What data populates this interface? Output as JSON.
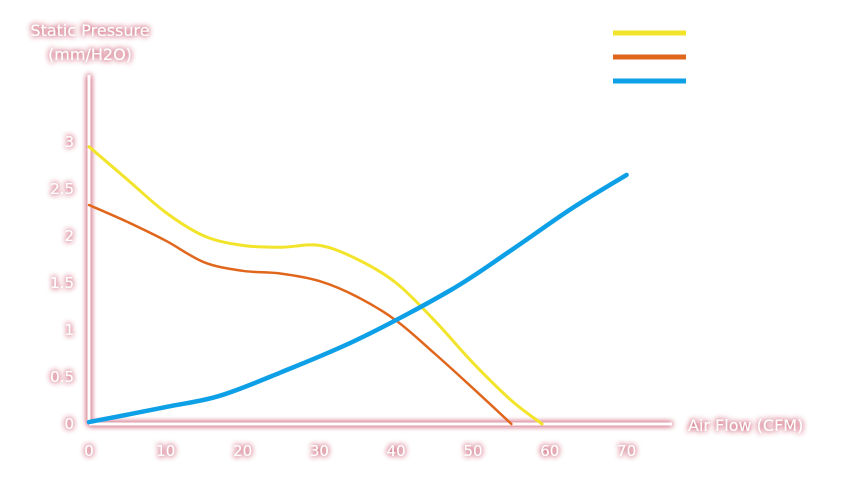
{
  "chart_data": {
    "type": "line",
    "title": "",
    "ylabel_lines": [
      "Static Pressure",
      "(mm/H2O)"
    ],
    "xlabel": "Air Flow (CFM)",
    "x_ticks": [
      "0",
      "10",
      "20",
      "30",
      "40",
      "50",
      "60",
      "70"
    ],
    "y_ticks": [
      "0",
      "0.5",
      "1",
      "1.5",
      "2",
      "2.5",
      "3"
    ],
    "xlim": [
      0,
      75
    ],
    "ylim": [
      0,
      3.6
    ],
    "grid": false,
    "legend_position": "top-right",
    "series": [
      {
        "color": "#f2e42a",
        "x": [
          0,
          5,
          10,
          15,
          20,
          25,
          30,
          35,
          40,
          45,
          50,
          55,
          59
        ],
        "y": [
          2.95,
          2.6,
          2.25,
          2.0,
          1.9,
          1.88,
          1.9,
          1.75,
          1.5,
          1.1,
          0.65,
          0.25,
          0.0
        ]
      },
      {
        "color": "#e0661c",
        "x": [
          0,
          5,
          10,
          15,
          20,
          25,
          30,
          35,
          40,
          45,
          50,
          55
        ],
        "y": [
          2.33,
          2.15,
          1.95,
          1.72,
          1.63,
          1.6,
          1.52,
          1.35,
          1.1,
          0.75,
          0.38,
          0.0
        ]
      },
      {
        "color": "#0ea0e6",
        "x": [
          0,
          10,
          17,
          25,
          35,
          47,
          55,
          63,
          70
        ],
        "y": [
          0.02,
          0.18,
          0.3,
          0.55,
          0.9,
          1.42,
          1.85,
          2.3,
          2.65
        ]
      }
    ]
  }
}
